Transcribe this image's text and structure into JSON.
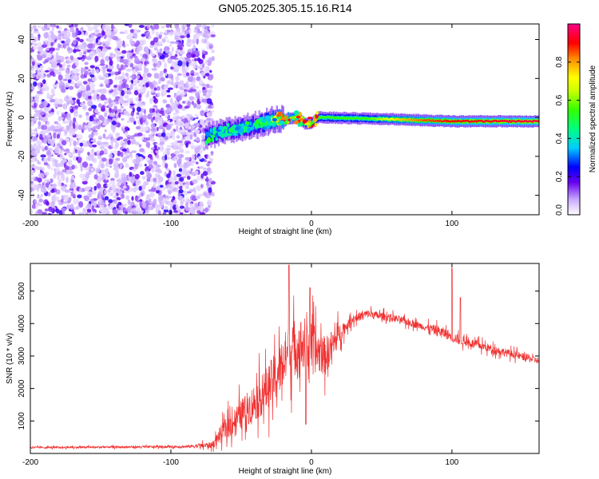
{
  "title": "GN05.2025.305.15.16.R14",
  "colors": {
    "trace": "#f03030",
    "frame": "#000000",
    "background": "#ffffff"
  },
  "chart_data": [
    {
      "type": "heatmap",
      "name": "spectrogram",
      "xlabel": "Height of straight line (km)",
      "ylabel": "Frequency (Hz)",
      "xlim": [
        -200,
        162
      ],
      "ylim": [
        -50,
        48
      ],
      "xticks": [
        -200,
        -100,
        0,
        100
      ],
      "yticks": [
        -40,
        -20,
        0,
        20,
        40
      ],
      "colorbar": {
        "label": "Normalized spectral amplitude",
        "range": [
          0,
          1
        ],
        "ticks": [
          0.0,
          0.2,
          0.4,
          0.6,
          0.8
        ],
        "tick_labels": [
          "0.0",
          "0.2",
          "0.4",
          "0.6",
          "0.8"
        ]
      },
      "regions": [
        {
          "kind": "noise",
          "x_range": [
            -200,
            -75
          ],
          "freq_range": [
            -50,
            48
          ],
          "amplitude": 0.1
        },
        {
          "kind": "line",
          "x_range": [
            -75,
            162
          ],
          "center_freq": [
            [
              -75,
              -10
            ],
            [
              -60,
              -7
            ],
            [
              -40,
              -4
            ],
            [
              -25,
              -1
            ],
            [
              -10,
              0
            ],
            [
              -5,
              -3
            ],
            [
              0,
              -3
            ],
            [
              5,
              0
            ],
            [
              60,
              -1
            ],
            [
              100,
              -2
            ],
            [
              162,
              -2
            ]
          ],
          "amplitude_profile": [
            [
              -75,
              0.3
            ],
            [
              -40,
              0.35
            ],
            [
              -20,
              0.85
            ],
            [
              0,
              0.55
            ],
            [
              40,
              0.55
            ],
            [
              60,
              0.75
            ],
            [
              80,
              0.85
            ],
            [
              100,
              0.9
            ],
            [
              162,
              0.95
            ]
          ]
        }
      ]
    },
    {
      "type": "line",
      "name": "snr",
      "xlabel": "Height of straight line (km)",
      "ylabel": "SNR (10 * v/v)",
      "xlim": [
        -200,
        162
      ],
      "ylim": [
        0,
        5850
      ],
      "xticks": [
        -200,
        -100,
        0,
        100
      ],
      "yticks": [
        1000,
        2000,
        3000,
        4000,
        5000
      ],
      "series": [
        {
          "name": "SNR",
          "envelope": [
            [
              -200,
              180
            ],
            [
              -90,
              210
            ],
            [
              -70,
              260
            ],
            [
              -65,
              600
            ],
            [
              -50,
              1200
            ],
            [
              -35,
              1800
            ],
            [
              -25,
              2400
            ],
            [
              -15,
              3200
            ],
            [
              -5,
              3400
            ],
            [
              10,
              3000
            ],
            [
              20,
              3700
            ],
            [
              30,
              4150
            ],
            [
              40,
              4300
            ],
            [
              60,
              4150
            ],
            [
              80,
              3900
            ],
            [
              95,
              3700
            ],
            [
              105,
              3500
            ],
            [
              130,
              3200
            ],
            [
              162,
              2850
            ]
          ],
          "noise": [
            [
              -200,
              40
            ],
            [
              -90,
              50
            ],
            [
              -70,
              150
            ],
            [
              -60,
              500
            ],
            [
              -30,
              1000
            ],
            [
              -15,
              1300
            ],
            [
              0,
              1100
            ],
            [
              15,
              700
            ],
            [
              25,
              200
            ],
            [
              80,
              150
            ],
            [
              90,
              250
            ],
            [
              110,
              200
            ],
            [
              162,
              150
            ]
          ],
          "spikes": [
            [
              -16,
              5800
            ],
            [
              -1,
              5100
            ],
            [
              100,
              5700
            ],
            [
              106,
              4800
            ],
            [
              -4,
              900
            ]
          ]
        }
      ]
    }
  ]
}
